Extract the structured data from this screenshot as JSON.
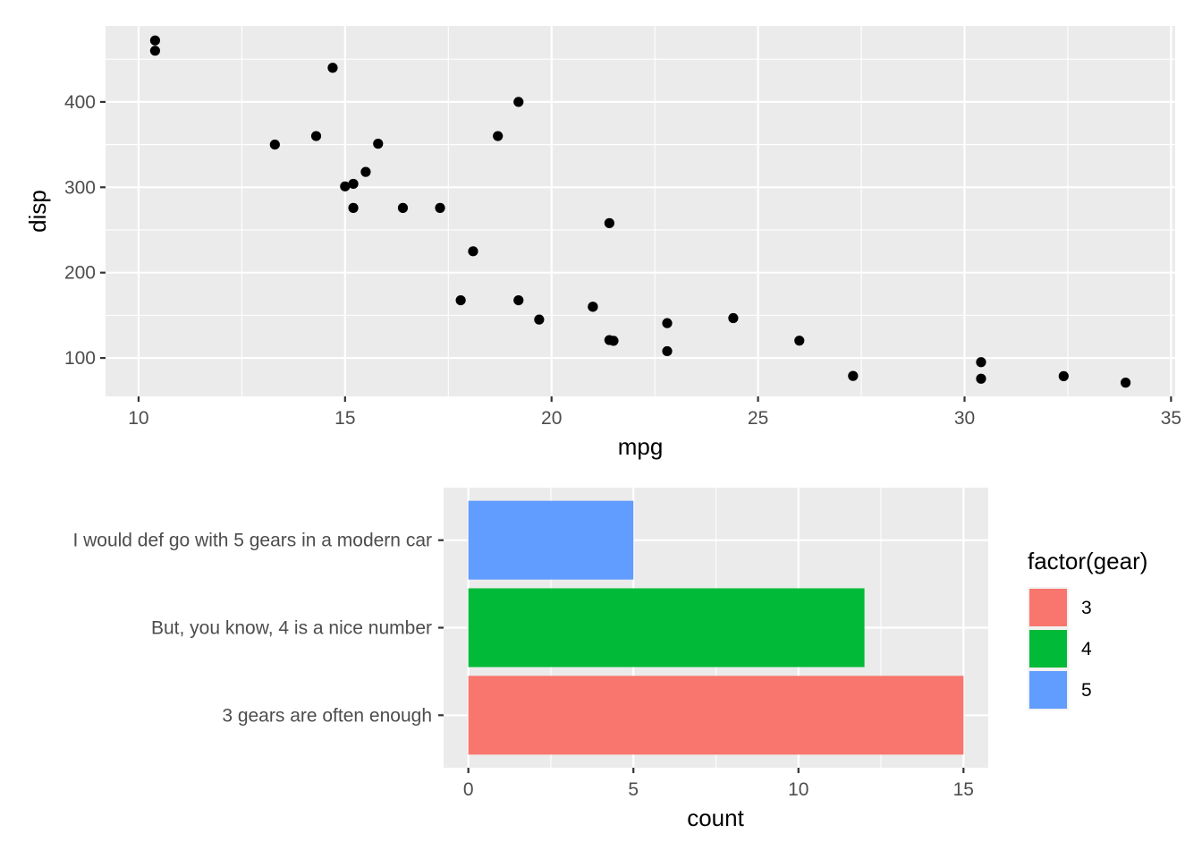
{
  "chart_data": [
    {
      "type": "scatter",
      "title": "",
      "xlabel": "mpg",
      "ylabel": "disp",
      "xlim": [
        9.2,
        35.1
      ],
      "ylim": [
        55.0,
        489.0
      ],
      "x_ticks": [
        10,
        15,
        20,
        25,
        30,
        35
      ],
      "y_ticks": [
        100,
        200,
        300,
        400
      ],
      "grid": true,
      "point_color": "#000000",
      "points": [
        {
          "x": 21.0,
          "y": 160.0
        },
        {
          "x": 21.0,
          "y": 160.0
        },
        {
          "x": 22.8,
          "y": 108.0
        },
        {
          "x": 21.4,
          "y": 258.0
        },
        {
          "x": 18.7,
          "y": 360.0
        },
        {
          "x": 18.1,
          "y": 225.0
        },
        {
          "x": 14.3,
          "y": 360.0
        },
        {
          "x": 24.4,
          "y": 146.7
        },
        {
          "x": 22.8,
          "y": 140.8
        },
        {
          "x": 19.2,
          "y": 167.6
        },
        {
          "x": 17.8,
          "y": 167.6
        },
        {
          "x": 16.4,
          "y": 275.8
        },
        {
          "x": 17.3,
          "y": 275.8
        },
        {
          "x": 15.2,
          "y": 275.8
        },
        {
          "x": 10.4,
          "y": 472.0
        },
        {
          "x": 10.4,
          "y": 460.0
        },
        {
          "x": 14.7,
          "y": 440.0
        },
        {
          "x": 32.4,
          "y": 78.7
        },
        {
          "x": 30.4,
          "y": 75.7
        },
        {
          "x": 33.9,
          "y": 71.1
        },
        {
          "x": 21.5,
          "y": 120.1
        },
        {
          "x": 15.5,
          "y": 318.0
        },
        {
          "x": 15.2,
          "y": 304.0
        },
        {
          "x": 13.3,
          "y": 350.0
        },
        {
          "x": 19.2,
          "y": 400.0
        },
        {
          "x": 27.3,
          "y": 79.0
        },
        {
          "x": 26.0,
          "y": 120.3
        },
        {
          "x": 30.4,
          "y": 95.1
        },
        {
          "x": 15.8,
          "y": 351.0
        },
        {
          "x": 19.7,
          "y": 145.0
        },
        {
          "x": 15.0,
          "y": 301.0
        },
        {
          "x": 21.4,
          "y": 121.0
        }
      ]
    },
    {
      "type": "bar",
      "orientation": "horizontal",
      "title": "",
      "xlabel": "count",
      "ylabel": "",
      "xlim": [
        -0.75,
        15.75
      ],
      "x_ticks": [
        0,
        5,
        10,
        15
      ],
      "grid": true,
      "legend_title": "factor(gear)",
      "legend_position": "right",
      "bars": [
        {
          "category": "3 gears are often enough",
          "gear": "3",
          "value": 15,
          "color": "#F8766D"
        },
        {
          "category": "But, you know, 4 is a nice number",
          "gear": "4",
          "value": 12,
          "color": "#00BA38"
        },
        {
          "category": "I would def go with 5 gears in a modern car",
          "gear": "5",
          "value": 5,
          "color": "#619CFF"
        }
      ],
      "legend": [
        {
          "label": "3",
          "color": "#F8766D"
        },
        {
          "label": "4",
          "color": "#00BA38"
        },
        {
          "label": "5",
          "color": "#619CFF"
        }
      ]
    }
  ]
}
